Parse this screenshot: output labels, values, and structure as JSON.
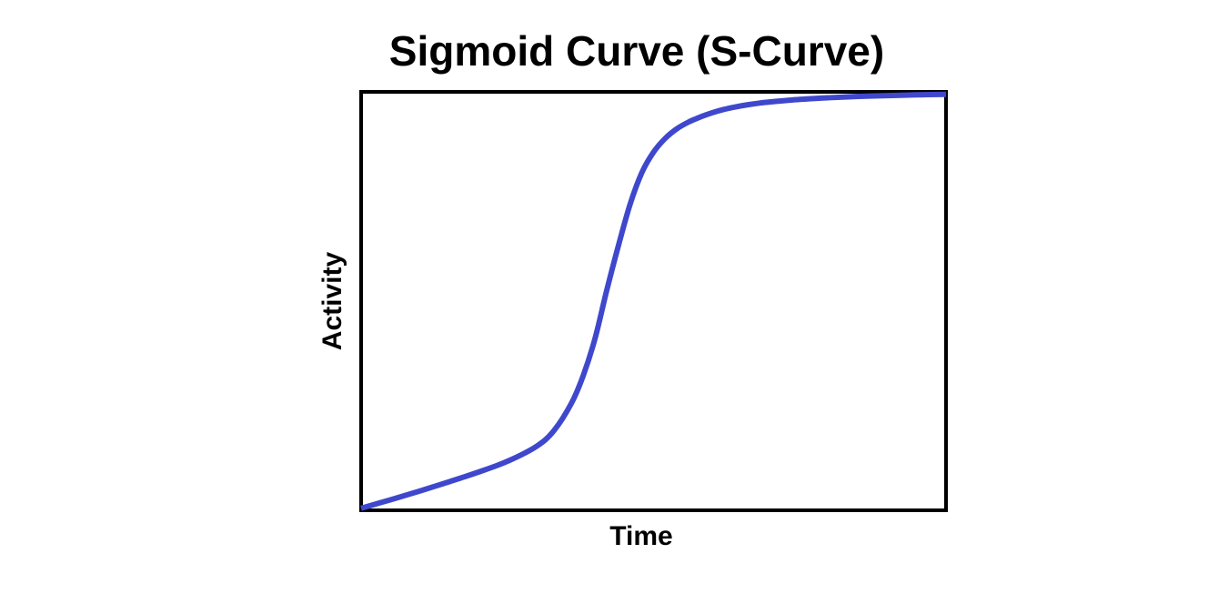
{
  "chart_data": {
    "type": "line",
    "title": "Sigmoid Curve (S-Curve)",
    "xlabel": "Time",
    "ylabel": "Activity",
    "xlim": [
      0,
      100
    ],
    "ylim": [
      0,
      100
    ],
    "grid": false,
    "show_ticks": false,
    "series": [
      {
        "color": "#3f48cc",
        "x": [
          0,
          5,
          10,
          15,
          20,
          25,
          30,
          33,
          36,
          38,
          40,
          42,
          44,
          46,
          48,
          50,
          52,
          54,
          56,
          58,
          60,
          62,
          64,
          66,
          68,
          70,
          75,
          80,
          85,
          90,
          95,
          100
        ],
        "y": [
          0.5,
          2.5,
          4.6,
          6.8,
          9.1,
          11.7,
          15.3,
          19.1,
          25.7,
          32.3,
          41.1,
          52.6,
          63.3,
          73.2,
          80.7,
          85.6,
          88.9,
          91.2,
          92.8,
          94.0,
          95.0,
          95.8,
          96.4,
          96.9,
          97.3,
          97.6,
          98.2,
          98.6,
          98.9,
          99.1,
          99.3,
          99.4
        ]
      }
    ]
  }
}
